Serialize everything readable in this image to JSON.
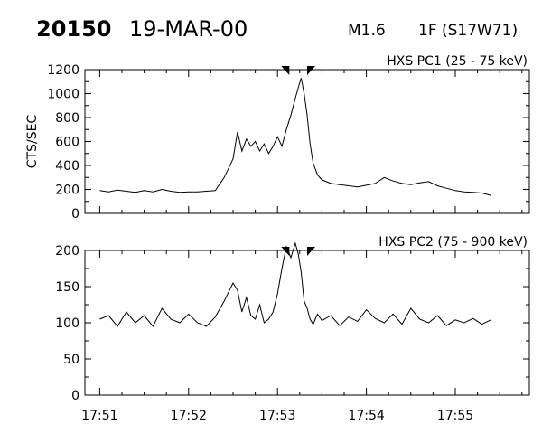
{
  "header": {
    "event_id": "20150",
    "date": "19-MAR-00",
    "goes_class": "M1.6",
    "flare": "1F (S17W71)"
  },
  "chart_data": [
    {
      "type": "line",
      "title": "HXS PC1 (25 - 75 keV)",
      "ylabel": "CTS/SEC",
      "xlabel": "",
      "ylim": [
        0,
        1200
      ],
      "yticks": [
        0,
        200,
        400,
        600,
        800,
        1000,
        1200
      ],
      "xlim": [
        "17:50:50",
        "17:55:50"
      ],
      "xticks": [
        "17:51",
        "17:52",
        "17:53",
        "17:54",
        "17:55"
      ],
      "grid": false,
      "markers": [
        "17:53:08",
        "17:53:20"
      ],
      "series": [
        {
          "x": [
            "17:51:00",
            "17:51:06",
            "17:51:12",
            "17:51:18",
            "17:51:24",
            "17:51:30",
            "17:51:36",
            "17:51:42",
            "17:51:48",
            "17:51:54",
            "17:52:00",
            "17:52:06",
            "17:52:12",
            "17:52:18",
            "17:52:24",
            "17:52:30",
            "17:52:33",
            "17:52:36",
            "17:52:39",
            "17:52:42",
            "17:52:45",
            "17:52:48",
            "17:52:51",
            "17:52:54",
            "17:52:57",
            "17:53:00",
            "17:53:03",
            "17:53:06",
            "17:53:09",
            "17:53:12",
            "17:53:14",
            "17:53:16",
            "17:53:18",
            "17:53:20",
            "17:53:22",
            "17:53:24",
            "17:53:27",
            "17:53:30",
            "17:53:36",
            "17:53:42",
            "17:53:48",
            "17:53:54",
            "17:54:00",
            "17:54:06",
            "17:54:12",
            "17:54:18",
            "17:54:24",
            "17:54:30",
            "17:54:36",
            "17:54:42",
            "17:54:48",
            "17:54:54",
            "17:55:00",
            "17:55:06",
            "17:55:12",
            "17:55:18",
            "17:55:24"
          ],
          "y": [
            190,
            180,
            195,
            185,
            175,
            190,
            180,
            200,
            185,
            175,
            180,
            180,
            185,
            190,
            300,
            455,
            680,
            520,
            620,
            560,
            600,
            520,
            580,
            500,
            560,
            640,
            560,
            700,
            820,
            960,
            1050,
            1130,
            1000,
            820,
            580,
            420,
            320,
            280,
            250,
            240,
            230,
            220,
            235,
            250,
            300,
            270,
            250,
            240,
            255,
            265,
            230,
            210,
            190,
            180,
            175,
            170,
            150
          ]
        }
      ]
    },
    {
      "type": "line",
      "title": "HXS PC2 (75 - 900 keV)",
      "ylabel": "",
      "xlabel": "",
      "ylim": [
        0,
        200
      ],
      "yticks": [
        0,
        50,
        100,
        150,
        200
      ],
      "xlim": [
        "17:50:50",
        "17:55:50"
      ],
      "xticks": [
        "17:51",
        "17:52",
        "17:53",
        "17:54",
        "17:55"
      ],
      "grid": false,
      "markers": [
        "17:53:08",
        "17:53:20"
      ],
      "series": [
        {
          "x": [
            "17:51:00",
            "17:51:06",
            "17:51:12",
            "17:51:18",
            "17:51:24",
            "17:51:30",
            "17:51:36",
            "17:51:42",
            "17:51:48",
            "17:51:54",
            "17:52:00",
            "17:52:06",
            "17:52:12",
            "17:52:18",
            "17:52:24",
            "17:52:30",
            "17:52:33",
            "17:52:36",
            "17:52:39",
            "17:52:42",
            "17:52:45",
            "17:52:48",
            "17:52:51",
            "17:52:54",
            "17:52:57",
            "17:53:00",
            "17:53:03",
            "17:53:06",
            "17:53:09",
            "17:53:12",
            "17:53:14",
            "17:53:16",
            "17:53:18",
            "17:53:20",
            "17:53:22",
            "17:53:24",
            "17:53:27",
            "17:53:30",
            "17:53:36",
            "17:53:42",
            "17:53:48",
            "17:53:54",
            "17:54:00",
            "17:54:06",
            "17:54:12",
            "17:54:18",
            "17:54:24",
            "17:54:30",
            "17:54:36",
            "17:54:42",
            "17:54:48",
            "17:54:54",
            "17:55:00",
            "17:55:06",
            "17:55:12",
            "17:55:18",
            "17:55:24"
          ],
          "y": [
            105,
            110,
            95,
            115,
            100,
            110,
            95,
            120,
            105,
            100,
            112,
            100,
            95,
            108,
            130,
            155,
            145,
            115,
            135,
            110,
            105,
            125,
            100,
            105,
            115,
            140,
            175,
            205,
            190,
            210,
            195,
            170,
            130,
            120,
            105,
            98,
            112,
            103,
            110,
            96,
            108,
            102,
            118,
            106,
            100,
            112,
            98,
            120,
            105,
            100,
            110,
            96,
            104,
            100,
            106,
            98,
            104
          ]
        }
      ]
    }
  ]
}
